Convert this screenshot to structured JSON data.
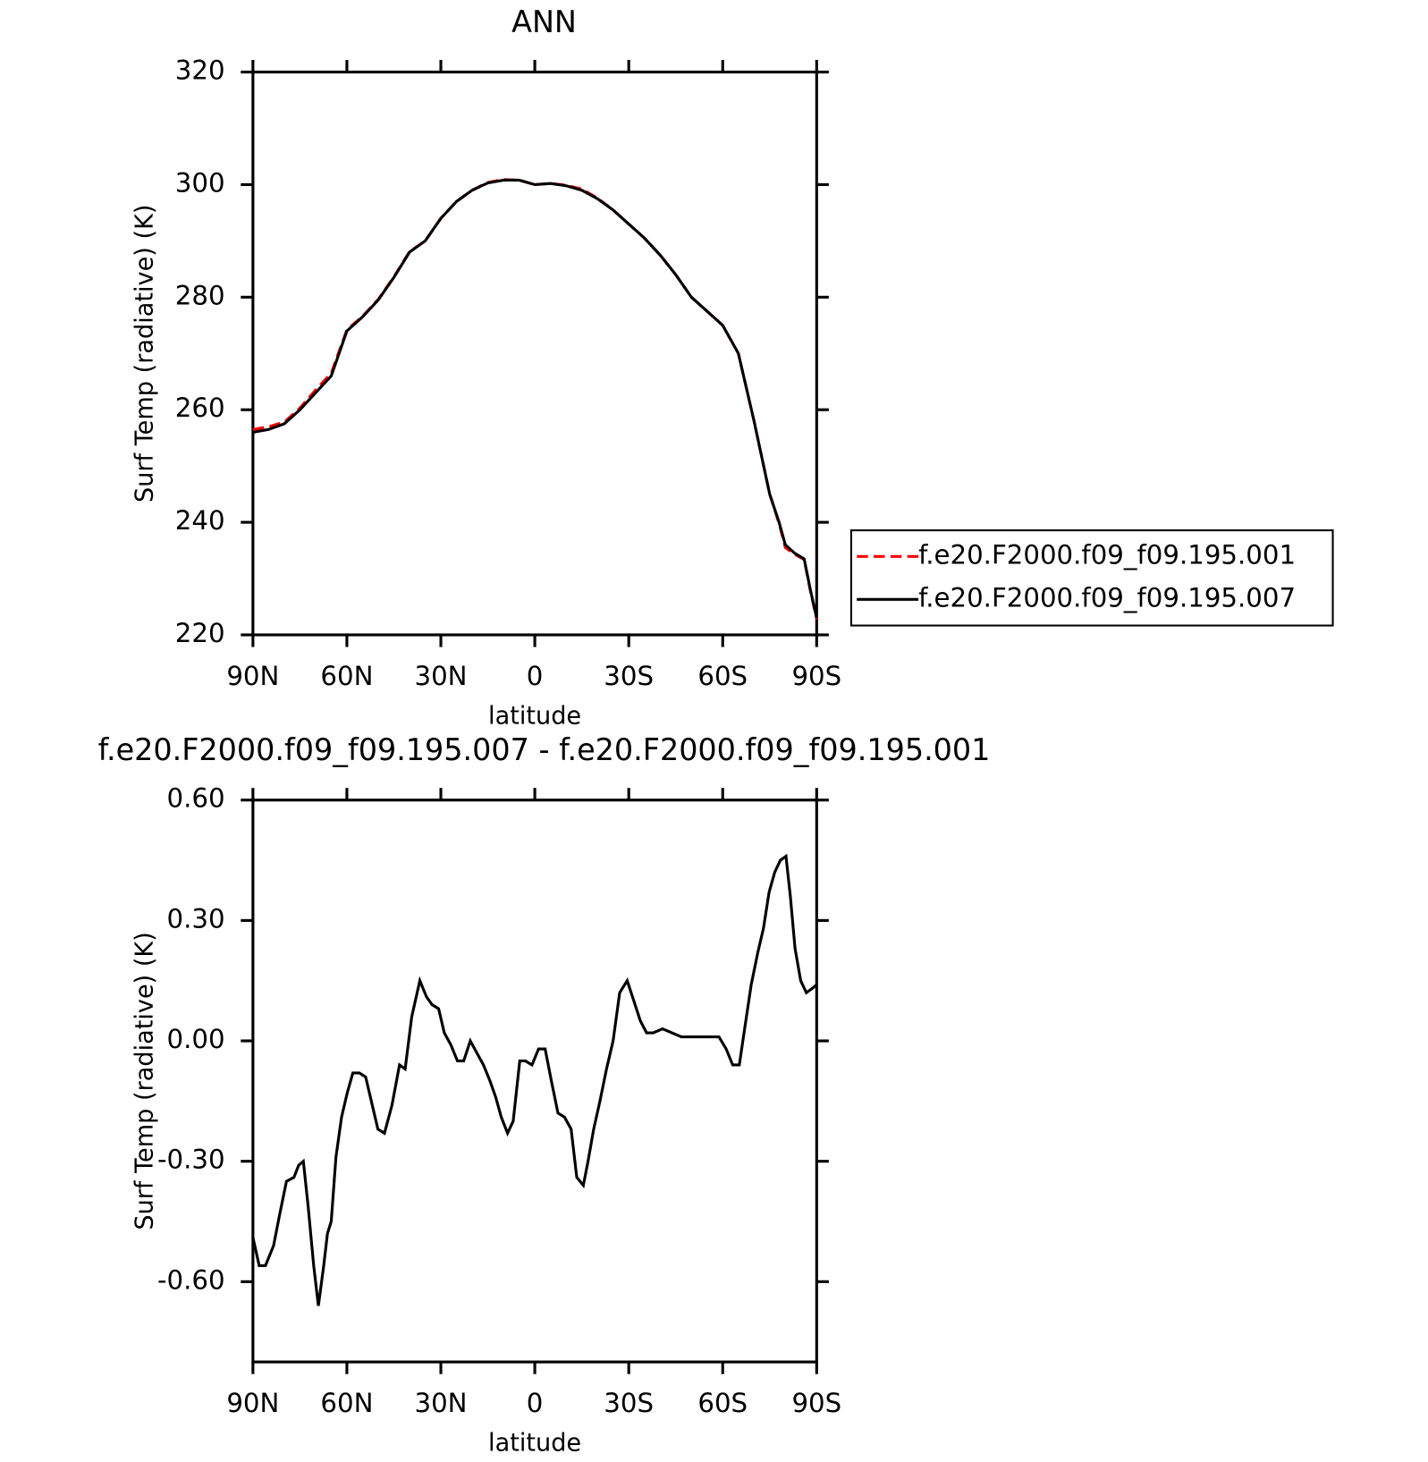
{
  "chart_data": [
    {
      "type": "line",
      "title": "ANN",
      "xlabel": "latitude",
      "ylabel": "Surf Temp (radiative) (K)",
      "xlim": [
        90,
        -90
      ],
      "ylim": [
        220,
        320
      ],
      "xticks": [
        {
          "value": 90,
          "label": "90N"
        },
        {
          "value": 60,
          "label": "60N"
        },
        {
          "value": 30,
          "label": "30N"
        },
        0,
        {
          "value": -30,
          "label": "30S"
        },
        {
          "value": -60,
          "label": "60S"
        },
        {
          "value": -90,
          "label": "90S"
        }
      ],
      "yticks": [
        220,
        240,
        260,
        280,
        300,
        320
      ],
      "legend": "right",
      "x": [
        90,
        85,
        80,
        75,
        70,
        65,
        60,
        55,
        50,
        45,
        40,
        35,
        30,
        25,
        20,
        15,
        10,
        5,
        0,
        -5,
        -10,
        -15,
        -20,
        -25,
        -30,
        -35,
        -40,
        -45,
        -50,
        -55,
        -60,
        -65,
        -70,
        -75,
        -78,
        -80,
        -83,
        -86,
        -88,
        -90
      ],
      "series": [
        {
          "name": "f.e20.F2000.f09_f09.195.001",
          "color": "#ff0000",
          "dashed": true,
          "values": [
            256.5,
            257,
            257.8,
            260.3,
            263.5,
            266.5,
            274.2,
            276.6,
            279.6,
            283.6,
            288.1,
            290,
            294,
            297,
            299,
            300.4,
            300.9,
            300.8,
            300,
            300.2,
            299.9,
            299.2,
            297.6,
            295.5,
            293,
            290.5,
            287.5,
            284,
            280,
            277.5,
            275,
            270,
            258,
            245,
            239.8,
            235.5,
            234.3,
            233.4,
            227.8,
            222.8
          ]
        },
        {
          "name": "f.e20.F2000.f09_f09.195.007",
          "color": "#000000",
          "dashed": false,
          "values": [
            256,
            256.5,
            257.5,
            260,
            263,
            266,
            274,
            276.5,
            279.5,
            283.5,
            288,
            290,
            294,
            297,
            299,
            300.3,
            300.8,
            300.8,
            300,
            300.2,
            299.8,
            299,
            297.5,
            295.5,
            293,
            290.5,
            287.5,
            284,
            280,
            277.5,
            275,
            270,
            258,
            245,
            240,
            236,
            234.5,
            233.5,
            228,
            223
          ]
        }
      ]
    },
    {
      "type": "line",
      "title": "f.e20.F2000.f09_f09.195.007 - f.e20.F2000.f09_f09.195.001",
      "xlabel": "latitude",
      "ylabel": "Surf Temp (radiative) (K)",
      "xlim": [
        90,
        -90
      ],
      "ylim": [
        -0.8,
        0.6
      ],
      "xticks": [
        {
          "value": 90,
          "label": "90N"
        },
        {
          "value": 60,
          "label": "60N"
        },
        {
          "value": 30,
          "label": "30N"
        },
        0,
        {
          "value": -30,
          "label": "30S"
        },
        {
          "value": -60,
          "label": "60S"
        },
        {
          "value": -90,
          "label": "90S"
        }
      ],
      "yticks": [
        {
          "value": -0.6,
          "label": "-0.60"
        },
        {
          "value": -0.3,
          "label": "-0.30"
        },
        {
          "value": 0,
          "label": "0.00"
        },
        {
          "value": 0.3,
          "label": "0.30"
        },
        {
          "value": 0.6,
          "label": "0.60"
        }
      ],
      "color": "#000000",
      "x": [
        90,
        88,
        86,
        83.4,
        81.4,
        79.3,
        76.9,
        75.4,
        73.9,
        72.4,
        70.6,
        69.1,
        67.4,
        66.2,
        65,
        63.5,
        61.7,
        59.9,
        58.1,
        56,
        54,
        51.9,
        50.1,
        48,
        45.6,
        43.2,
        41.4,
        39.3,
        36.7,
        34.6,
        32.8,
        30.7,
        28.9,
        26.8,
        24.7,
        22.7,
        20.6,
        18.5,
        16.4,
        14.3,
        12.5,
        10.7,
        8.7,
        6.9,
        4.8,
        3,
        0.9,
        -1.2,
        -3.3,
        -5.3,
        -7.4,
        -9.5,
        -11.6,
        -13.4,
        -15.5,
        -17,
        -18.8,
        -20.8,
        -22.9,
        -25,
        -27.1,
        -29.5,
        -31.6,
        -33.7,
        -35.7,
        -37.8,
        -40.8,
        -43.8,
        -46.8,
        -49.8,
        -52.8,
        -55.8,
        -58.8,
        -61.1,
        -63.2,
        -65.3,
        -67,
        -69.1,
        -71.2,
        -73,
        -74.8,
        -76.6,
        -78.4,
        -80.2,
        -81.6,
        -83.1,
        -84.9,
        -86.7,
        -88.5,
        -90
      ],
      "values": [
        -0.49,
        -0.56,
        -0.56,
        -0.51,
        -0.43,
        -0.35,
        -0.34,
        -0.31,
        -0.3,
        -0.41,
        -0.56,
        -0.66,
        -0.56,
        -0.48,
        -0.45,
        -0.29,
        -0.19,
        -0.13,
        -0.08,
        -0.08,
        -0.09,
        -0.16,
        -0.22,
        -0.23,
        -0.16,
        -0.06,
        -0.07,
        0.06,
        0.15,
        0.11,
        0.09,
        0.08,
        0.02,
        -0.01,
        -0.05,
        -0.05,
        0,
        -0.03,
        -0.06,
        -0.1,
        -0.14,
        -0.19,
        -0.23,
        -0.2,
        -0.05,
        -0.05,
        -0.06,
        -0.02,
        -0.02,
        -0.1,
        -0.18,
        -0.19,
        -0.22,
        -0.34,
        -0.36,
        -0.3,
        -0.22,
        -0.15,
        -0.07,
        0,
        0.12,
        0.15,
        0.1,
        0.05,
        0.02,
        0.02,
        0.03,
        0.02,
        0.01,
        0.01,
        0.01,
        0.01,
        0.01,
        -0.02,
        -0.06,
        -0.06,
        0.03,
        0.14,
        0.22,
        0.28,
        0.37,
        0.42,
        0.45,
        0.46,
        0.36,
        0.23,
        0.15,
        0.12,
        0.13,
        0.14
      ]
    }
  ]
}
